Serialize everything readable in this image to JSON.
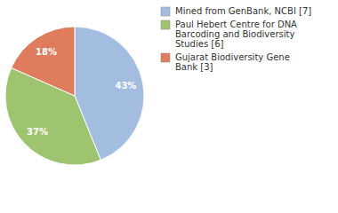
{
  "chart_data": {
    "type": "pie",
    "categories": [
      "Mined from GenBank, NCBI [7]",
      "Paul Hebert Centre for DNA Barcoding and Biodiversity Studies [6]",
      "Gujarat Biodiversity Gene Bank [3]"
    ],
    "values": [
      43,
      37,
      18
    ],
    "value_labels": [
      "43%",
      "37%",
      "18%"
    ],
    "colors": [
      "#a3bde0",
      "#9fc46f",
      "#e07c5e"
    ],
    "data_labels": true,
    "legend": "top-right"
  }
}
